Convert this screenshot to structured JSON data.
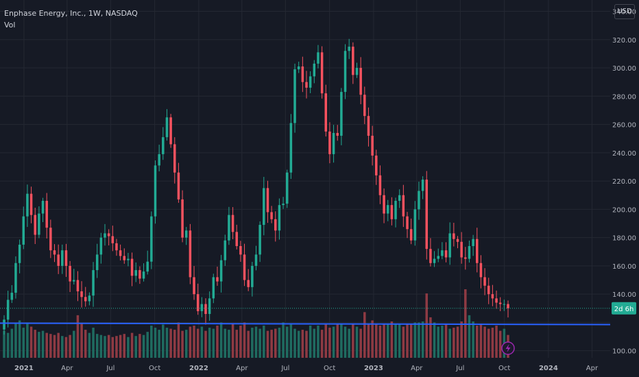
{
  "legend": {
    "symbol_title": "Enphase Energy, Inc., 1W, NASDAQ",
    "volume_label": "Vol"
  },
  "currency_button": "USD",
  "countdown_label": "2d 6h",
  "colors": {
    "background": "#161a25",
    "grid": "#242833",
    "up": "#22ab94",
    "down": "#f7525f",
    "volume_up": "#1f6b60",
    "volume_down": "#8e3a43",
    "horizontal_line": "#2962ff",
    "text": "#b2b5be",
    "lightning": "#9c27b0"
  },
  "icons": {
    "lightning": "lightning-icon"
  },
  "chart_data": {
    "type": "candlestick",
    "title": "Enphase Energy, Inc., 1W, NASDAQ",
    "currency": "USD",
    "interval": "1W",
    "y_ticks": [
      100,
      120,
      140,
      160,
      180,
      200,
      220,
      240,
      260,
      280,
      300,
      320,
      340
    ],
    "y_tick_labels": [
      "100.00",
      "",
      "140.00",
      "160.00",
      "180.00",
      "200.00",
      "220.00",
      "240.00",
      "260.00",
      "280.00",
      "300.00",
      "320.00",
      "340.00"
    ],
    "ylim": [
      95,
      348
    ],
    "x_tick_labels": [
      "2021",
      "Apr",
      "Jul",
      "Oct",
      "2022",
      "Apr",
      "Jul",
      "Oct",
      "2023",
      "Apr",
      "Jul",
      "Oct",
      "2024",
      "Apr"
    ],
    "x_tick_dates": [
      "2021-01-01",
      "2021-04-01",
      "2021-07-01",
      "2021-10-01",
      "2022-01-01",
      "2022-04-01",
      "2022-07-01",
      "2022-10-01",
      "2023-01-01",
      "2023-04-01",
      "2023-07-01",
      "2023-10-01",
      "2024-01-01",
      "2024-04-01"
    ],
    "xlim": [
      "2020-11-12",
      "2024-05-09"
    ],
    "bold_x_ticks": [
      "2021",
      "2022",
      "2023",
      "2024"
    ],
    "horizontal_line": 119,
    "last_price_line": 130,
    "closes": [
      122,
      136,
      141,
      162,
      175,
      195,
      211,
      196,
      182,
      197,
      206,
      187,
      171,
      168,
      160,
      171,
      160,
      149,
      150,
      142,
      138,
      135,
      139,
      157,
      168,
      180,
      183,
      181,
      176,
      171,
      167,
      164,
      165,
      153,
      157,
      151,
      156,
      163,
      195,
      231,
      239,
      251,
      265,
      246,
      226,
      207,
      180,
      185,
      152,
      140,
      128,
      133,
      126,
      137,
      152,
      149,
      164,
      178,
      196,
      184,
      174,
      168,
      150,
      145,
      160,
      168,
      189,
      215,
      198,
      193,
      185,
      203,
      204,
      226,
      261,
      299,
      301,
      290,
      286,
      294,
      303,
      311,
      282,
      255,
      239,
      254,
      252,
      283,
      312,
      315,
      295,
      300,
      281,
      266,
      252,
      238,
      224,
      210,
      197,
      203,
      193,
      206,
      210,
      195,
      186,
      178,
      200,
      213,
      221,
      172,
      162,
      165,
      167,
      171,
      166,
      183,
      179,
      177,
      166,
      165,
      174,
      179,
      162,
      152,
      146,
      140,
      137,
      134,
      133,
      133,
      130
    ],
    "volume_values": [
      2.6,
      2.4,
      2.8,
      3.3,
      3.6,
      2.9,
      3.4,
      3.0,
      2.7,
      2.5,
      2.6,
      2.4,
      2.3,
      2.2,
      2.4,
      2.1,
      2.0,
      2.2,
      2.6,
      4.1,
      3.3,
      2.7,
      2.4,
      2.9,
      2.3,
      2.2,
      2.1,
      2.2,
      2.0,
      2.1,
      2.2,
      2.3,
      2.0,
      2.4,
      2.1,
      2.3,
      2.2,
      2.5,
      3.1,
      2.9,
      2.7,
      3.2,
      2.9,
      2.8,
      2.7,
      3.4,
      2.6,
      2.7,
      3.0,
      3.1,
      2.8,
      3.0,
      2.6,
      2.9,
      2.8,
      3.1,
      3.4,
      2.8,
      2.7,
      3.3,
      2.7,
      3.1,
      3.4,
      2.6,
      2.9,
      3.0,
      2.8,
      3.1,
      2.6,
      2.7,
      2.8,
      2.9,
      3.4,
      3.0,
      3.2,
      2.8,
      2.6,
      2.7,
      2.6,
      3.1,
      2.8,
      3.1,
      2.7,
      3.2,
      2.9,
      3.0,
      3.2,
      3.3,
      3.0,
      2.8,
      3.3,
      3.0,
      2.8,
      4.4,
      3.2,
      3.6,
      3.3,
      3.1,
      3.2,
      3.3,
      3.5,
      3.3,
      3.2,
      3.0,
      3.3,
      3.2,
      3.4,
      3.4,
      3.5,
      6.2,
      3.9,
      3.4,
      3.0,
      3.1,
      3.2,
      2.8,
      2.9,
      3.0,
      3.5,
      6.6,
      4.1,
      3.5,
      3.1,
      3.3,
      3.0,
      2.8,
      2.9,
      3.1,
      2.6,
      2.8,
      2.2
    ]
  }
}
